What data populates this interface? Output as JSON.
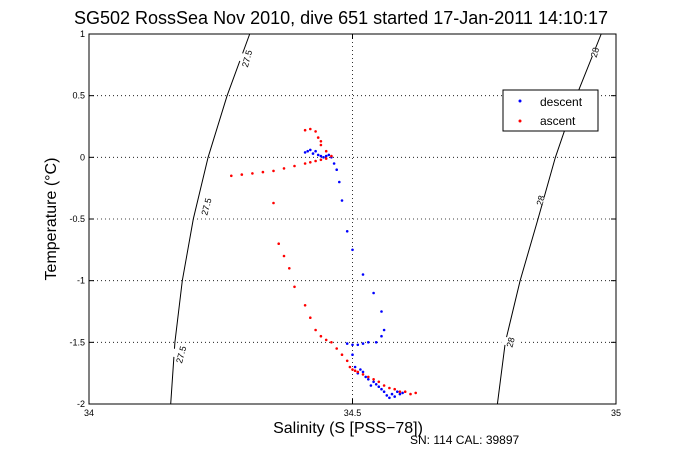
{
  "chart_data": {
    "type": "scatter",
    "title": "SG502 RossSea Nov 2010, dive 651 started 17-Jan-2011 14:10:17",
    "xlabel": "Salinity (S [PSS−78])",
    "ylabel": "Temperature (°C)",
    "xlim": [
      34,
      35
    ],
    "ylim": [
      -2,
      1
    ],
    "x_ticks": [
      "34",
      "34.5",
      "35"
    ],
    "y_ticks": [
      "-2",
      "-1.5",
      "-1",
      "-0.5",
      "0",
      "0.5",
      "1"
    ],
    "grid": true,
    "legend_position": "top-right",
    "footer": "SN: 114  CAL: 39897",
    "colors": {
      "descent": "#0000ff",
      "ascent": "#ff0000",
      "axes": "#000000"
    },
    "contours": [
      {
        "label": "27.5",
        "points": [
          [
            34.155,
            -2.0
          ],
          [
            34.163,
            -1.5
          ],
          [
            34.177,
            -1.0
          ],
          [
            34.198,
            -0.5
          ],
          [
            34.226,
            0.0
          ],
          [
            34.262,
            0.5
          ],
          [
            34.305,
            1.0
          ]
        ],
        "label_positions": [
          [
            34.175,
            -1.6
          ],
          [
            34.223,
            -0.4
          ],
          [
            34.3,
            0.8
          ]
        ]
      },
      {
        "label": "28",
        "points": [
          [
            34.775,
            -2.0
          ],
          [
            34.79,
            -1.5
          ],
          [
            34.818,
            -1.0
          ],
          [
            34.852,
            -0.5
          ],
          [
            34.885,
            0.0
          ],
          [
            34.925,
            0.5
          ],
          [
            34.972,
            1.0
          ]
        ],
        "label_positions": [
          [
            34.8,
            -1.5
          ],
          [
            34.857,
            -0.35
          ],
          [
            34.96,
            0.85
          ]
        ]
      }
    ],
    "series": [
      {
        "name": "descent",
        "points": [
          [
            34.41,
            0.04
          ],
          [
            34.415,
            0.05
          ],
          [
            34.42,
            0.06
          ],
          [
            34.425,
            0.03
          ],
          [
            34.43,
            0.05
          ],
          [
            34.435,
            0.02
          ],
          [
            34.44,
            0.01
          ],
          [
            34.445,
            0.0
          ],
          [
            34.45,
            0.01
          ],
          [
            34.455,
            0.02
          ],
          [
            34.46,
            0.0
          ],
          [
            34.465,
            -0.05
          ],
          [
            34.47,
            -0.1
          ],
          [
            34.475,
            -0.2
          ],
          [
            34.48,
            -0.35
          ],
          [
            34.49,
            -0.6
          ],
          [
            34.5,
            -0.75
          ],
          [
            34.52,
            -0.95
          ],
          [
            34.54,
            -1.1
          ],
          [
            34.555,
            -1.25
          ],
          [
            34.56,
            -1.4
          ],
          [
            34.555,
            -1.45
          ],
          [
            34.545,
            -1.5
          ],
          [
            34.53,
            -1.5
          ],
          [
            34.52,
            -1.51
          ],
          [
            34.51,
            -1.52
          ],
          [
            34.5,
            -1.52
          ],
          [
            34.49,
            -1.51
          ],
          [
            34.5,
            -1.6
          ],
          [
            34.505,
            -1.7
          ],
          [
            34.51,
            -1.75
          ],
          [
            34.515,
            -1.72
          ],
          [
            34.52,
            -1.74
          ],
          [
            34.525,
            -1.78
          ],
          [
            34.53,
            -1.8
          ],
          [
            34.535,
            -1.85
          ],
          [
            34.54,
            -1.82
          ],
          [
            34.545,
            -1.84
          ],
          [
            34.55,
            -1.86
          ],
          [
            34.555,
            -1.88
          ],
          [
            34.56,
            -1.9
          ],
          [
            34.565,
            -1.93
          ],
          [
            34.57,
            -1.95
          ],
          [
            34.575,
            -1.92
          ],
          [
            34.58,
            -1.94
          ],
          [
            34.585,
            -1.9
          ],
          [
            34.59,
            -1.92
          ],
          [
            34.595,
            -1.91
          ]
        ]
      },
      {
        "name": "ascent",
        "points": [
          [
            34.41,
            0.22
          ],
          [
            34.42,
            0.23
          ],
          [
            34.43,
            0.21
          ],
          [
            34.435,
            0.16
          ],
          [
            34.44,
            0.13
          ],
          [
            34.44,
            0.1
          ],
          [
            34.45,
            0.05
          ],
          [
            34.46,
            0.01
          ],
          [
            34.45,
            -0.01
          ],
          [
            34.44,
            -0.02
          ],
          [
            34.43,
            -0.03
          ],
          [
            34.42,
            -0.04
          ],
          [
            34.41,
            -0.05
          ],
          [
            34.39,
            -0.07
          ],
          [
            34.37,
            -0.09
          ],
          [
            34.35,
            -0.11
          ],
          [
            34.33,
            -0.12
          ],
          [
            34.31,
            -0.13
          ],
          [
            34.29,
            -0.14
          ],
          [
            34.27,
            -0.15
          ],
          [
            34.35,
            -0.37
          ],
          [
            34.36,
            -0.7
          ],
          [
            34.37,
            -0.8
          ],
          [
            34.38,
            -0.9
          ],
          [
            34.39,
            -1.05
          ],
          [
            34.41,
            -1.2
          ],
          [
            34.42,
            -1.3
          ],
          [
            34.43,
            -1.4
          ],
          [
            34.44,
            -1.45
          ],
          [
            34.45,
            -1.48
          ],
          [
            34.46,
            -1.5
          ],
          [
            34.47,
            -1.55
          ],
          [
            34.48,
            -1.6
          ],
          [
            34.49,
            -1.65
          ],
          [
            34.495,
            -1.7
          ],
          [
            34.5,
            -1.72
          ],
          [
            34.505,
            -1.73
          ],
          [
            34.51,
            -1.74
          ],
          [
            34.52,
            -1.76
          ],
          [
            34.53,
            -1.78
          ],
          [
            34.54,
            -1.8
          ],
          [
            34.55,
            -1.82
          ],
          [
            34.56,
            -1.85
          ],
          [
            34.57,
            -1.87
          ],
          [
            34.58,
            -1.88
          ],
          [
            34.59,
            -1.9
          ],
          [
            34.6,
            -1.9
          ],
          [
            34.61,
            -1.92
          ],
          [
            34.62,
            -1.91
          ]
        ]
      }
    ]
  }
}
